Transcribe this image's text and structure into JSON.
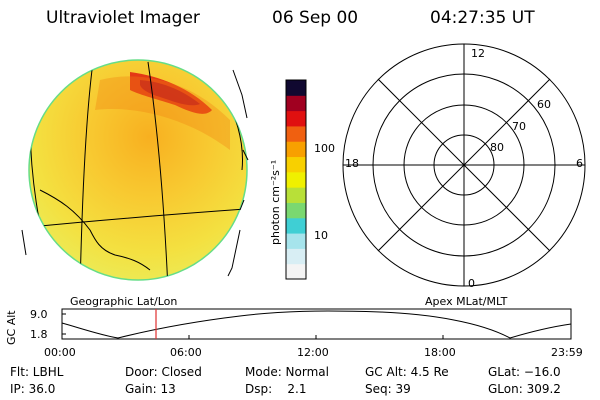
{
  "header": {
    "instrument": "Ultraviolet Imager",
    "date": "06 Sep 00",
    "time": "04:27:35 UT"
  },
  "colorbar": {
    "label": "photon cm⁻²s⁻¹",
    "ticks": [
      "100",
      "10"
    ],
    "scale": "log",
    "colors": [
      "#f4f4f4",
      "#d8eef4",
      "#a6e4ec",
      "#3fcfd4",
      "#7ad870",
      "#b8e038",
      "#f0f000",
      "#f8d000",
      "#f8a000",
      "#f06010",
      "#e01010",
      "#a00020",
      "#100830"
    ]
  },
  "polar_plot": {
    "mlt_labels": [
      "12",
      "18",
      "6",
      "0"
    ],
    "lat_labels": [
      "60",
      "70",
      "80"
    ]
  },
  "labels": {
    "geographic": "Geographic Lat/Lon",
    "apex": "Apex MLat/MLT"
  },
  "altitude_plot": {
    "ylabel": "GC Alt",
    "yticks": [
      "9.0",
      "1.8"
    ],
    "xticks": [
      "00:00",
      "06:00",
      "12:00",
      "18:00",
      "23:59"
    ],
    "marker_time": "04:27:35"
  },
  "status": {
    "row1": {
      "flt": "Flt: LBHL",
      "door": "Door: Closed",
      "mode": "Mode: Normal",
      "gcalt": "GC Alt: 4.5 Re",
      "glat": "GLat: −16.0"
    },
    "row2": {
      "ip": "IP: 36.0",
      "gain": "Gain: 13",
      "dsp": "Dsp:    2.1",
      "seq": "Seq: 39",
      "glon": "GLon: 309.2"
    }
  }
}
